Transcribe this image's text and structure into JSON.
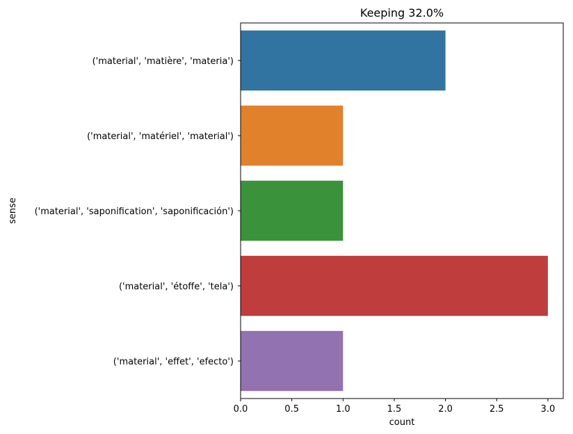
{
  "chart_data": {
    "type": "bar",
    "orientation": "horizontal",
    "title": "Keeping 32.0%",
    "xlabel": "count",
    "ylabel": "sense",
    "categories": [
      "('material', 'matière', 'materia')",
      "('material', 'matériel', 'material')",
      "('material', 'saponification', 'saponificación')",
      "('material', 'étoffe', 'tela')",
      "('material', 'effet', 'efecto')"
    ],
    "values": [
      2,
      1,
      1,
      3,
      1
    ],
    "colors": [
      "#3274a1",
      "#e1812c",
      "#3a923a",
      "#c03d3e",
      "#9372b2"
    ],
    "xlim": [
      0,
      3.15
    ],
    "xticks": [
      "0.0",
      "0.5",
      "1.0",
      "1.5",
      "2.0",
      "2.5",
      "3.0"
    ],
    "grid": false,
    "legend": "none"
  }
}
